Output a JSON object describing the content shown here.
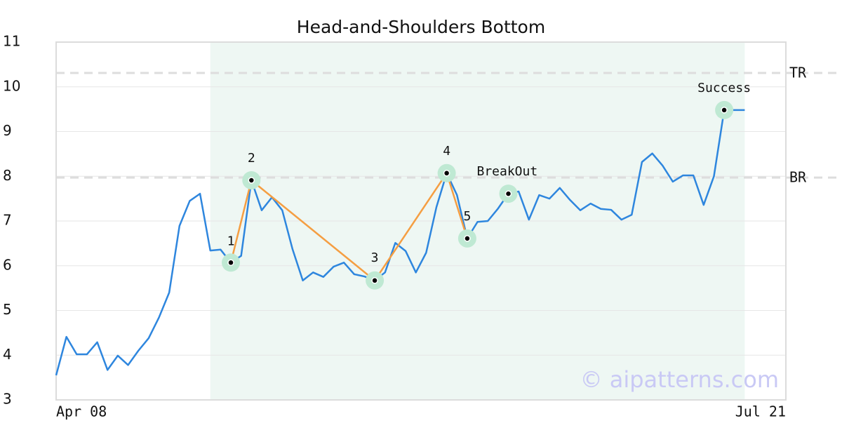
{
  "chart_data": {
    "type": "line",
    "title": "Head-and-Shoulders Bottom",
    "x": [
      0,
      1,
      2,
      3,
      4,
      5,
      6,
      7,
      8,
      9,
      10,
      11,
      12,
      13,
      14,
      15,
      16,
      17,
      18,
      19,
      20,
      21,
      22,
      23,
      24,
      25,
      26,
      27,
      28,
      29,
      30,
      31,
      32,
      33,
      34,
      35,
      36,
      37,
      38,
      39,
      40,
      41,
      42,
      43,
      44,
      45,
      46,
      47,
      48,
      49,
      50,
      51,
      52,
      53,
      54,
      55,
      56,
      57,
      58,
      59,
      60,
      61,
      62,
      63,
      64,
      65,
      66,
      67
    ],
    "series": [
      {
        "color": "#2e86de",
        "values": [
          3.55,
          4.41,
          4.02,
          4.02,
          4.29,
          3.67,
          3.99,
          3.78,
          4.1,
          4.38,
          4.84,
          5.4,
          6.89,
          7.45,
          7.61,
          6.34,
          6.36,
          6.07,
          6.22,
          7.91,
          7.24,
          7.53,
          7.24,
          6.37,
          5.67,
          5.85,
          5.75,
          5.98,
          6.07,
          5.81,
          5.76,
          5.67,
          5.85,
          6.51,
          6.33,
          5.85,
          6.29,
          7.31,
          8.07,
          7.58,
          6.61,
          6.98,
          7.0,
          7.28,
          7.61,
          7.66,
          7.03,
          7.58,
          7.5,
          7.74,
          7.47,
          7.24,
          7.39,
          7.27,
          7.25,
          7.03,
          7.14,
          8.32,
          8.51,
          8.24,
          7.88,
          8.02,
          8.02,
          7.36,
          8.0,
          9.48,
          9.48,
          9.48
        ]
      }
    ],
    "pattern_color": "#f59e42",
    "pattern": [
      {
        "label": "1",
        "x": 17,
        "y": 6.07
      },
      {
        "label": "2",
        "x": 19,
        "y": 7.91
      },
      {
        "label": "3",
        "x": 31,
        "y": 5.67
      },
      {
        "label": "4",
        "x": 38,
        "y": 8.07
      },
      {
        "label": "5",
        "x": 40,
        "y": 6.61
      }
    ],
    "events": [
      {
        "label": "BreakOut",
        "x": 44,
        "y": 7.61
      },
      {
        "label": "Success",
        "x": 65,
        "y": 9.48
      }
    ],
    "levels": [
      {
        "label": "TR",
        "value": 10.31
      },
      {
        "label": "BR",
        "value": 7.97
      }
    ],
    "highlight": [
      15,
      67
    ],
    "xlim": [
      0,
      71
    ],
    "xticks": [
      {
        "value": 0,
        "label": "Apr 08"
      },
      {
        "value": 71,
        "label": "Jul 21"
      }
    ],
    "ylim": [
      3,
      11
    ],
    "yticks": [
      3,
      4,
      5,
      6,
      7,
      8,
      9,
      10,
      11
    ],
    "grid": true,
    "watermark": "© aipatterns.com"
  }
}
